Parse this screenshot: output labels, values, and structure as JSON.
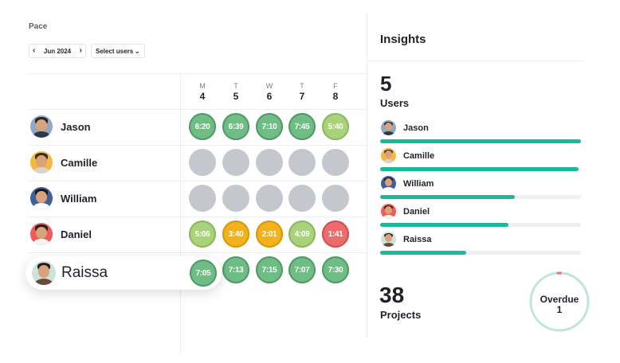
{
  "header": {
    "title": "Pace",
    "month": "Jun 2024",
    "user_select": "Select users"
  },
  "days": [
    {
      "weekday": "M",
      "date": "4"
    },
    {
      "weekday": "T",
      "date": "5"
    },
    {
      "weekday": "W",
      "date": "6"
    },
    {
      "weekday": "T",
      "date": "7"
    },
    {
      "weekday": "F",
      "date": "8"
    }
  ],
  "rows": [
    {
      "name": "Jason",
      "cells": [
        {
          "v": "6:20",
          "s": "green"
        },
        {
          "v": "6:39",
          "s": "green"
        },
        {
          "v": "7:10",
          "s": "green"
        },
        {
          "v": "7:45",
          "s": "green"
        },
        {
          "v": "5:40",
          "s": "lime"
        }
      ]
    },
    {
      "name": "Camille",
      "cells": [
        {
          "v": "",
          "s": "empty"
        },
        {
          "v": "",
          "s": "empty"
        },
        {
          "v": "",
          "s": "empty"
        },
        {
          "v": "",
          "s": "empty"
        },
        {
          "v": "",
          "s": "empty"
        }
      ]
    },
    {
      "name": "William",
      "cells": [
        {
          "v": "",
          "s": "empty"
        },
        {
          "v": "",
          "s": "empty"
        },
        {
          "v": "",
          "s": "empty"
        },
        {
          "v": "",
          "s": "empty"
        },
        {
          "v": "",
          "s": "empty"
        }
      ]
    },
    {
      "name": "Daniel",
      "cells": [
        {
          "v": "5:06",
          "s": "lime"
        },
        {
          "v": "3:40",
          "s": "amber"
        },
        {
          "v": "2:01",
          "s": "amber"
        },
        {
          "v": "4:09",
          "s": "lime"
        },
        {
          "v": "1:41",
          "s": "red"
        }
      ]
    },
    {
      "name": "Raissa",
      "cells": [
        {
          "v": "7:05",
          "s": "green"
        },
        {
          "v": "7:13",
          "s": "green"
        },
        {
          "v": "7:15",
          "s": "green"
        },
        {
          "v": "7:07",
          "s": "green"
        },
        {
          "v": "7:30",
          "s": "green"
        }
      ]
    }
  ],
  "status_colors": {
    "green": "#6fbd85",
    "lime": "#a9d27a",
    "amber": "#f2b21c",
    "red": "#ee6b6b",
    "empty": "#c5c7cf",
    "bar": "#1cb89a"
  },
  "insights": {
    "title": "Insights",
    "users_count": "5",
    "users_label": "Users",
    "users": [
      {
        "name": "Jason",
        "progress": 1.0
      },
      {
        "name": "Camille",
        "progress": 0.99
      },
      {
        "name": "William",
        "progress": 0.67
      },
      {
        "name": "Daniel",
        "progress": 0.64
      },
      {
        "name": "Raissa",
        "progress": 0.43
      }
    ],
    "projects_count": "38",
    "projects_label": "Projects",
    "overdue_label": "Overdue",
    "overdue_count": "1",
    "overdue_fraction": 0.026
  }
}
